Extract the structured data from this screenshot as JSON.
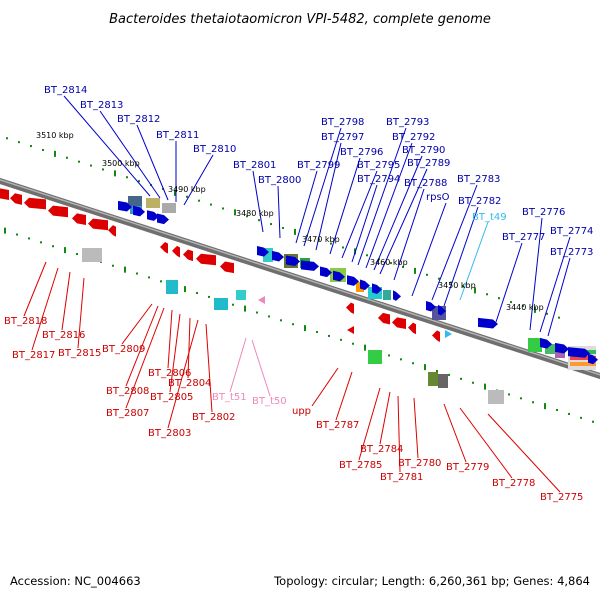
{
  "title": "Bacteroides thetaiotaomicron VPI-5482, complete genome",
  "footer": {
    "accession": "Accession: NC_004663",
    "stats": "Topology: circular; Length: 6,260,361 bp; Genes: 4,864"
  },
  "colors": {
    "forward_strand": "#0000cc",
    "reverse_strand": "#dd0000",
    "trna": "#33bbee",
    "rrna": "#ee88bb",
    "backbone": "#888888",
    "tick_mark": "#118811"
  },
  "scale_labels": [
    "3510 kbp",
    "3500 kbp",
    "3490 kbp",
    "3480 kbp",
    "3470 kbp",
    "3460 kbp",
    "3450 kbp",
    "3440 kbp"
  ],
  "labels_forward": [
    "BT_2814",
    "BT_2813",
    "BT_2812",
    "BT_2811",
    "BT_2810",
    "BT_2801",
    "BT_2800",
    "BT_2799",
    "BT_2798",
    "BT_2797",
    "BT_2796",
    "BT_2795",
    "BT_2794",
    "BT_2793",
    "BT_2792",
    "BT_2790",
    "BT_2789",
    "BT_2788",
    "rpsO",
    "BT_2783",
    "BT_2782",
    "BT_2777",
    "BT_2776",
    "BT_2774",
    "BT_2773"
  ],
  "labels_forward_rna": [
    "BT_t49"
  ],
  "labels_reverse": [
    "BT_2818",
    "BT_2817",
    "BT_2816",
    "BT_2815",
    "BT_2809",
    "BT_2808",
    "BT_2807",
    "BT_2806",
    "BT_2805",
    "BT_2804",
    "BT_2803",
    "BT_2802",
    "upp",
    "BT_2787",
    "BT_2785",
    "BT_2784",
    "BT_2781",
    "BT_2780",
    "BT_2779",
    "BT_2778",
    "BT_2775"
  ],
  "labels_reverse_rna": [
    "BT_t51",
    "BT_t50"
  ]
}
